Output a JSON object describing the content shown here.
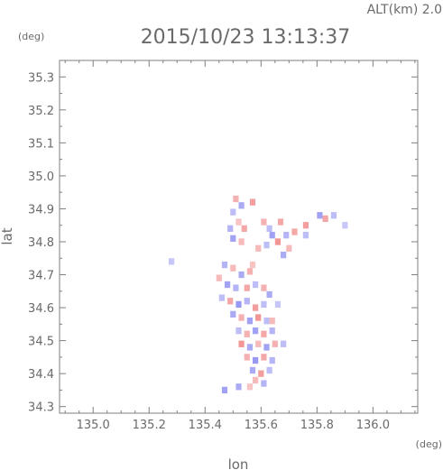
{
  "header": {
    "altitude": "ALT(km) 2.0",
    "timestamp": "2015/10/23 13:13:37",
    "y_unit": "(deg)",
    "x_unit": "(deg)"
  },
  "chart_data": {
    "type": "heatmap",
    "title": "2015/10/23 13:13:37",
    "xlabel": "lon",
    "ylabel": "lat",
    "x_unit": "(deg)",
    "y_unit": "(deg)",
    "xlim": [
      134.88,
      136.16
    ],
    "ylim": [
      34.28,
      35.35
    ],
    "x_ticks": [
      135.0,
      135.2,
      135.4,
      135.6,
      135.8,
      136.0
    ],
    "x_tick_labels": [
      "135.0",
      "135.2",
      "135.4",
      "135.6",
      "135.8",
      "136.0"
    ],
    "y_ticks": [
      34.3,
      34.4,
      34.5,
      34.6,
      34.7,
      34.8,
      34.9,
      35.0,
      35.1,
      35.2,
      35.3
    ],
    "y_tick_labels": [
      "34.3",
      "34.4",
      "34.5",
      "34.6",
      "34.7",
      "34.8",
      "34.9",
      "35.0",
      "35.1",
      "35.2",
      "35.3"
    ],
    "grid": false,
    "colors": {
      "positive": "#f08a8a",
      "negative": "#8f8ff2",
      "neutral": "#d7d7f2",
      "frame": "#7f7f7f",
      "text": "#6a6a6a"
    },
    "cells": [
      [
        135.51,
        34.93,
        0.4
      ],
      [
        135.53,
        34.91,
        -0.5
      ],
      [
        135.57,
        34.92,
        0.6
      ],
      [
        135.5,
        34.89,
        -0.3
      ],
      [
        135.52,
        34.86,
        0.2
      ],
      [
        135.49,
        34.84,
        -0.4
      ],
      [
        135.54,
        34.84,
        0.5
      ],
      [
        135.5,
        34.81,
        -0.6
      ],
      [
        135.53,
        34.8,
        0.3
      ],
      [
        135.61,
        34.86,
        0.4
      ],
      [
        135.63,
        34.84,
        -0.3
      ],
      [
        135.67,
        34.86,
        0.5
      ],
      [
        135.64,
        34.82,
        -0.6
      ],
      [
        135.66,
        34.8,
        0.7
      ],
      [
        135.69,
        34.82,
        -0.4
      ],
      [
        135.7,
        34.78,
        0.3
      ],
      [
        135.72,
        34.83,
        0.5
      ],
      [
        135.68,
        34.76,
        -0.5
      ],
      [
        135.76,
        34.85,
        0.6
      ],
      [
        135.76,
        34.82,
        -0.3
      ],
      [
        135.81,
        34.88,
        -0.6
      ],
      [
        135.83,
        34.87,
        0.5
      ],
      [
        135.86,
        34.88,
        -0.3
      ],
      [
        135.9,
        34.85,
        -0.2
      ],
      [
        135.62,
        34.79,
        -0.3
      ],
      [
        135.59,
        34.78,
        0.3
      ],
      [
        135.28,
        34.74,
        -0.2
      ],
      [
        135.47,
        34.73,
        -0.4
      ],
      [
        135.5,
        34.72,
        0.3
      ],
      [
        135.53,
        34.7,
        -0.5
      ],
      [
        135.56,
        34.71,
        0.4
      ],
      [
        135.45,
        34.69,
        0.3
      ],
      [
        135.48,
        34.67,
        -0.6
      ],
      [
        135.51,
        34.66,
        -0.4
      ],
      [
        135.55,
        34.66,
        0.5
      ],
      [
        135.58,
        34.67,
        -0.3
      ],
      [
        135.61,
        34.66,
        0.4
      ],
      [
        135.63,
        34.64,
        -0.5
      ],
      [
        135.46,
        34.63,
        -0.3
      ],
      [
        135.49,
        34.62,
        0.5
      ],
      [
        135.52,
        34.61,
        -0.7
      ],
      [
        135.55,
        34.62,
        -0.4
      ],
      [
        135.58,
        34.6,
        0.6
      ],
      [
        135.61,
        34.61,
        -0.3
      ],
      [
        135.5,
        34.58,
        -0.5
      ],
      [
        135.53,
        34.57,
        0.4
      ],
      [
        135.56,
        34.56,
        -0.6
      ],
      [
        135.59,
        34.57,
        0.7
      ],
      [
        135.62,
        34.56,
        -0.3
      ],
      [
        135.52,
        34.53,
        -0.3
      ],
      [
        135.55,
        34.52,
        0.4
      ],
      [
        135.58,
        34.53,
        -0.6
      ],
      [
        135.61,
        34.52,
        0.5
      ],
      [
        135.64,
        34.53,
        -0.4
      ],
      [
        135.53,
        34.49,
        0.7
      ],
      [
        135.56,
        34.48,
        -0.5
      ],
      [
        135.59,
        34.49,
        0.3
      ],
      [
        135.62,
        34.48,
        -0.6
      ],
      [
        135.65,
        34.49,
        0.4
      ],
      [
        135.68,
        34.49,
        -0.3
      ],
      [
        135.55,
        34.45,
        0.4
      ],
      [
        135.58,
        34.44,
        -0.7
      ],
      [
        135.61,
        34.45,
        0.5
      ],
      [
        135.64,
        34.44,
        -0.4
      ],
      [
        135.57,
        34.41,
        -0.5
      ],
      [
        135.6,
        34.4,
        0.6
      ],
      [
        135.63,
        34.41,
        -0.3
      ],
      [
        135.58,
        34.38,
        0.3
      ],
      [
        135.61,
        34.37,
        -0.4
      ],
      [
        135.52,
        34.36,
        -0.5
      ],
      [
        135.47,
        34.35,
        -0.6
      ],
      [
        135.56,
        34.36,
        0.2
      ],
      [
        135.64,
        34.56,
        0.3
      ],
      [
        135.66,
        34.61,
        -0.2
      ],
      [
        135.57,
        34.73,
        0.2
      ]
    ]
  }
}
